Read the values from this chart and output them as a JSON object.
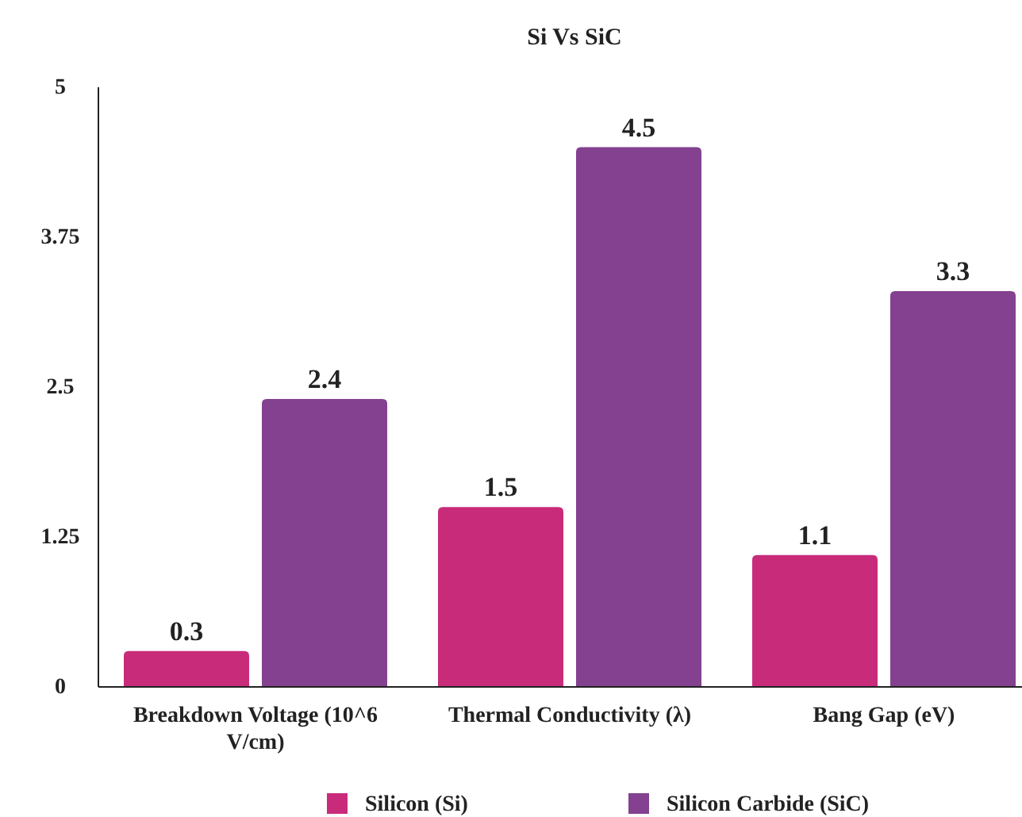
{
  "chart_data": {
    "type": "bar",
    "title": "Si Vs SiC",
    "categories": [
      "Breakdown Voltage (10^6 V/cm)",
      "Thermal Conductivity (λ)",
      "Bang Gap (eV)"
    ],
    "series": [
      {
        "name": "Silicon (Si)",
        "color": "#c92b7b",
        "values": [
          0.3,
          1.5,
          1.1
        ]
      },
      {
        "name": "Silicon Carbide (SiC)",
        "color": "#83418f",
        "values": [
          2.4,
          4.5,
          3.3
        ]
      }
    ],
    "ylim": [
      0,
      5
    ],
    "yticks": [
      0,
      1.25,
      2.5,
      3.75,
      5
    ],
    "grid": false,
    "legend": "bottom",
    "data_labels": true
  }
}
